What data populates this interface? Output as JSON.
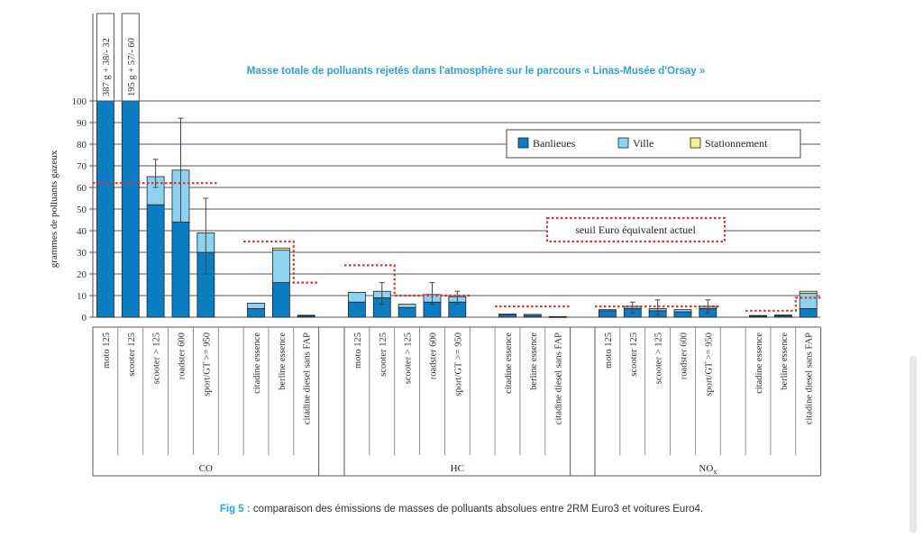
{
  "chart_data": {
    "type": "bar",
    "stacked": true,
    "title": "Masse totale de polluants rejetés dans l'atmosphère sur le parcours « Linas-Musée d'Orsay »",
    "ylabel": "grammes de polluants gazeux",
    "ylim": [
      0,
      100
    ],
    "yticks": [
      "0",
      "10",
      "20",
      "30",
      "40",
      "50",
      "60",
      "70",
      "80",
      "90",
      "100"
    ],
    "grid": true,
    "legend_position": "top-right",
    "legend": [
      "Banlieues",
      "Ville",
      "Stationnement"
    ],
    "colors": {
      "Banlieues": "#0b7dc2",
      "Ville": "#8ed1f0",
      "Stationnement": "#f5ef9a",
      "threshold": "#e03030",
      "error_bar": "#444444"
    },
    "threshold_label": "seuil Euro équivalent actuel",
    "groups": [
      {
        "name": "CO",
        "sub": "",
        "categories": [
          "moto 125",
          "scooter 125",
          "scooter > 125",
          "roadster 600",
          "sport/GT >= 950",
          "",
          "citadine essence",
          "berline essence",
          "citadine diesel sans FAP"
        ],
        "banlieues": [
          100,
          100,
          52,
          44,
          30,
          null,
          4,
          16,
          0.6
        ],
        "ville": [
          0,
          0,
          13,
          24,
          9,
          null,
          2.5,
          15,
          0.3
        ],
        "stationnement": [
          0,
          0,
          0,
          0,
          0,
          null,
          0,
          1,
          0
        ],
        "err_low": [
          null,
          null,
          60,
          44,
          20,
          null,
          null,
          null,
          null
        ],
        "err_high": [
          null,
          null,
          73,
          92,
          55,
          null,
          null,
          null,
          null
        ],
        "overflow_labels": [
          "387 g + 38/- 32",
          "195 g + 57/- 60",
          null,
          null,
          null,
          null,
          null,
          null,
          null
        ],
        "threshold": [
          62,
          62,
          62,
          62,
          62,
          null,
          35,
          35,
          16
        ]
      },
      {
        "name": "HC",
        "sub": "",
        "categories": [
          "moto 125",
          "scooter 125",
          "scooter > 125",
          "roadster 600",
          "sport/GT >= 950",
          "",
          "citadine essence",
          "berline essence",
          "citadine diesel sans FAP"
        ],
        "banlieues": [
          7,
          9,
          4.5,
          7,
          7,
          null,
          1,
          0.8,
          0.2
        ],
        "ville": [
          4.5,
          3,
          1.5,
          3.5,
          2.5,
          null,
          0.5,
          0.5,
          0.1
        ],
        "stationnement": [
          0,
          0,
          0,
          0,
          0,
          null,
          0,
          0,
          0
        ],
        "err_low": [
          null,
          6,
          null,
          6,
          6,
          null,
          null,
          null,
          null
        ],
        "err_high": [
          null,
          16,
          null,
          16,
          12,
          null,
          null,
          null,
          null
        ],
        "overflow_labels": [
          null,
          null,
          null,
          null,
          null,
          null,
          null,
          null,
          null
        ],
        "threshold": [
          24,
          24,
          10,
          10,
          10,
          null,
          5,
          5,
          5
        ]
      },
      {
        "name": "NO",
        "sub": "x",
        "categories": [
          "moto 125",
          "scooter 125",
          "scooter > 125",
          "roadster 600",
          "sport/GT >= 950",
          "",
          "citadine essence",
          "berline essence",
          "citadine diesel sans FAP"
        ],
        "banlieues": [
          3,
          4,
          3,
          2.5,
          4,
          null,
          0.6,
          0.7,
          4
        ],
        "ville": [
          0.5,
          1,
          1,
          1,
          1,
          null,
          0.2,
          0.3,
          7
        ],
        "stationnement": [
          0,
          0,
          0,
          0,
          0,
          null,
          0,
          0,
          1
        ],
        "err_low": [
          null,
          2,
          1,
          null,
          2,
          null,
          null,
          null,
          null
        ],
        "err_high": [
          null,
          7,
          8,
          null,
          8,
          null,
          null,
          null,
          null
        ],
        "overflow_labels": [
          null,
          null,
          null,
          null,
          null,
          null,
          null,
          null,
          null
        ],
        "threshold": [
          5,
          5,
          5,
          5,
          5,
          null,
          3,
          3,
          9
        ]
      }
    ]
  },
  "caption": {
    "figref": "Fig 5 :",
    "text": " comparaison des émissions de masses de polluants absolues entre 2RM Euro3 et voitures Euro4."
  }
}
